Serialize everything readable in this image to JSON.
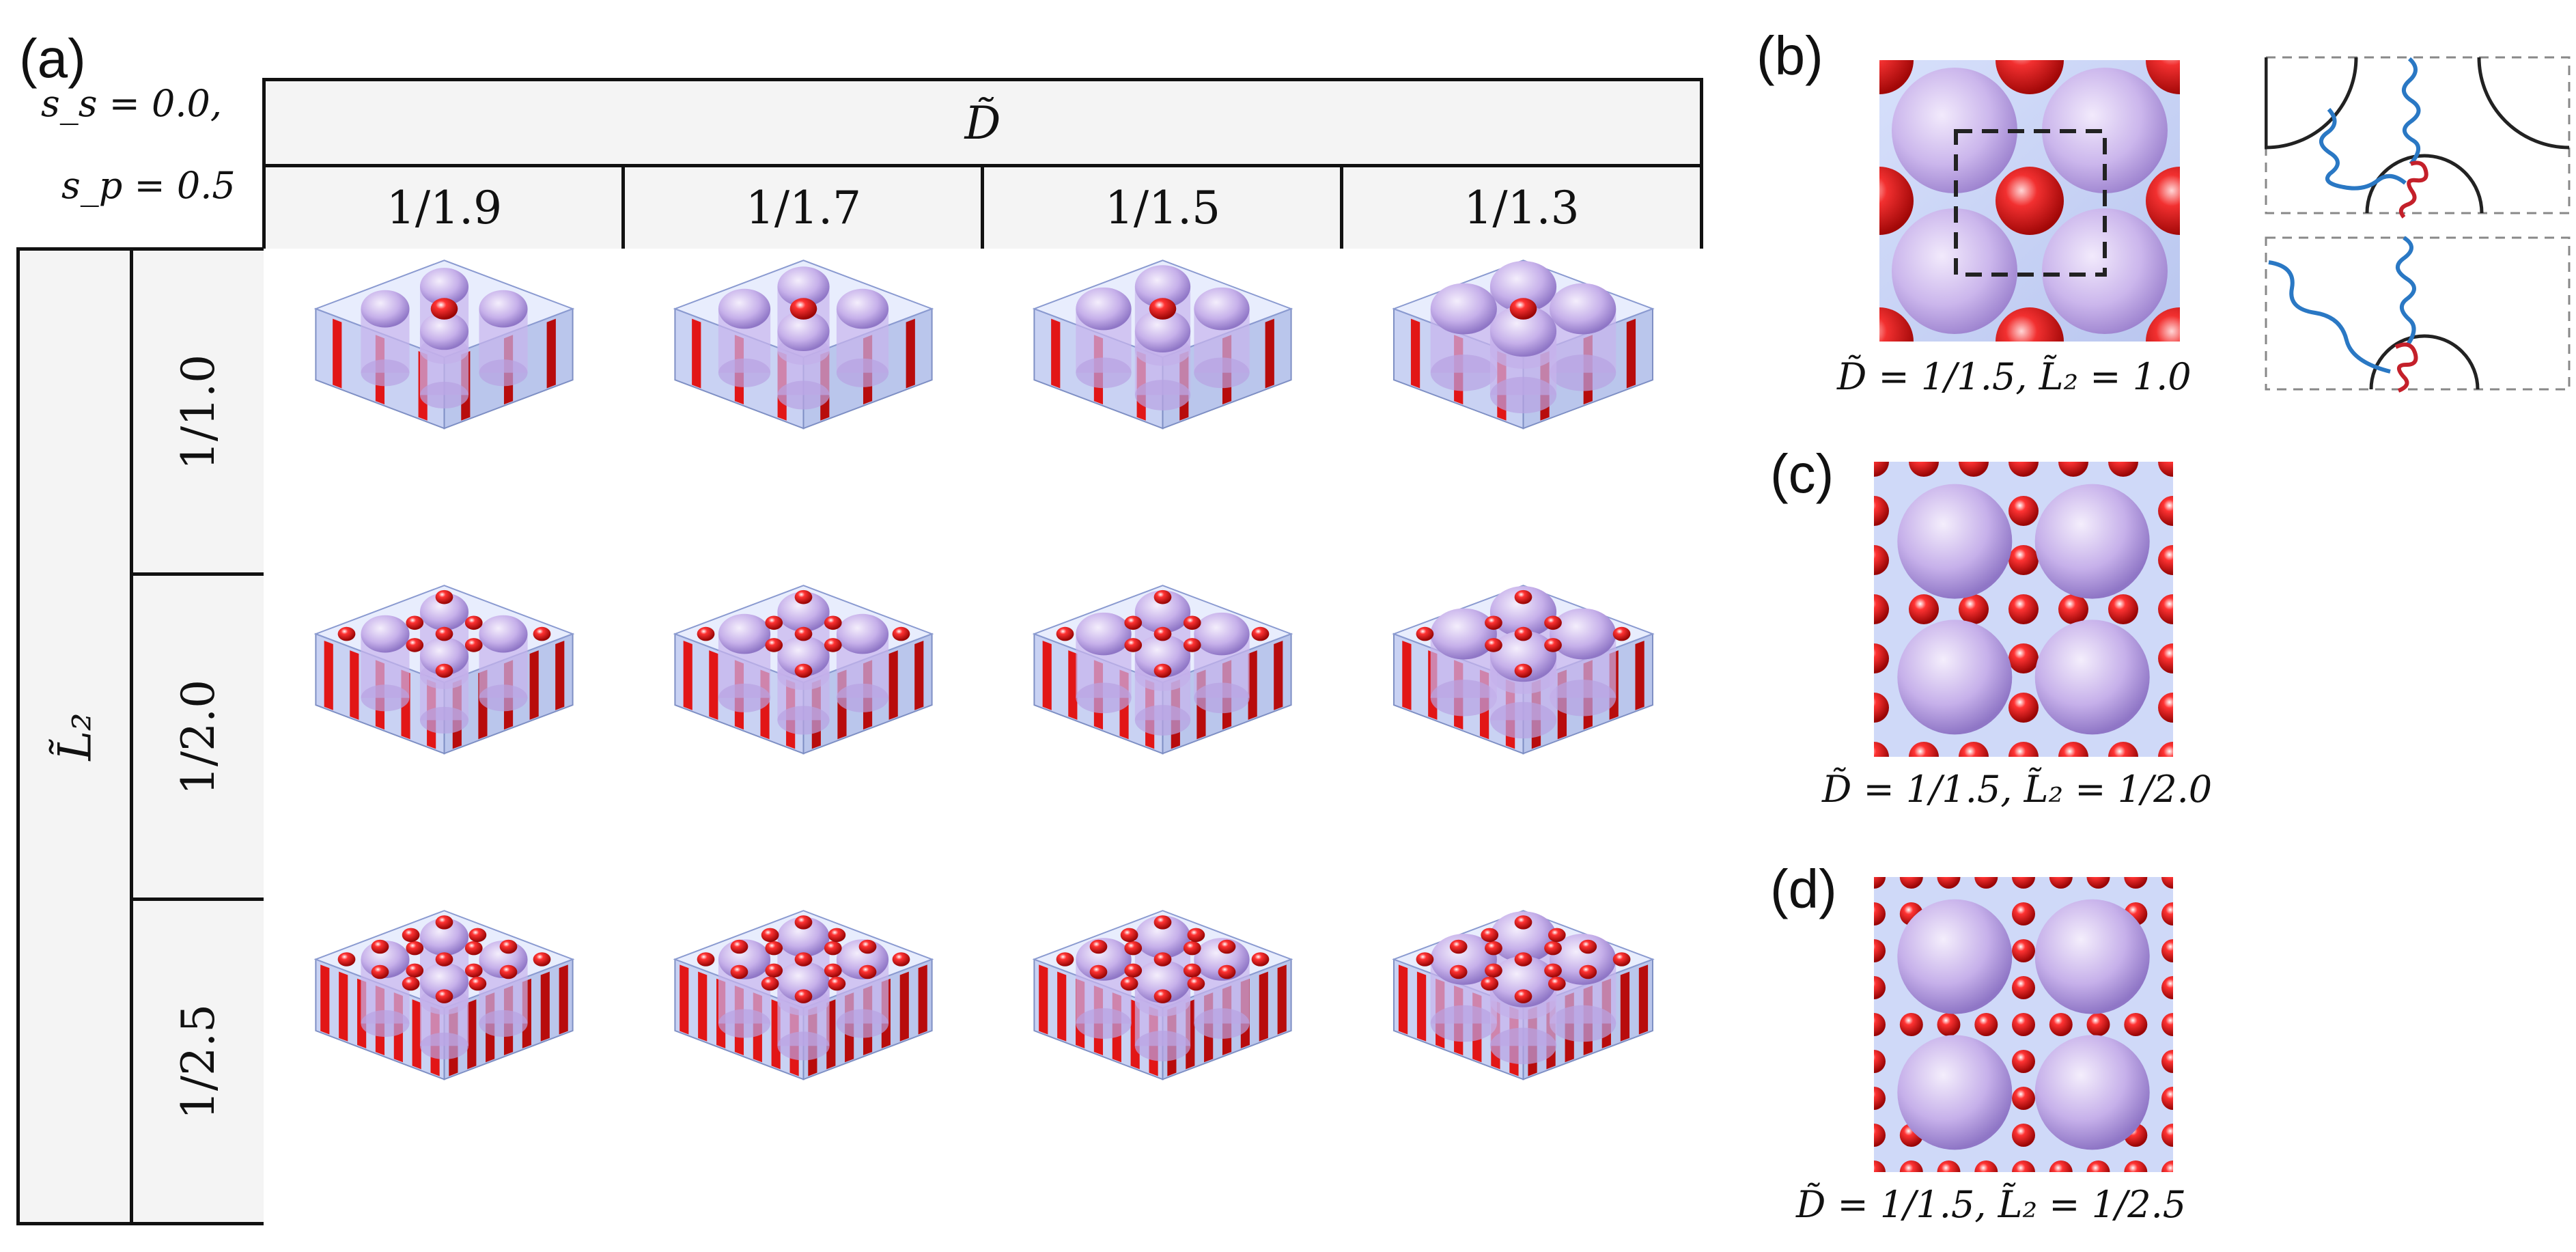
{
  "panel_a": {
    "label": "(a)",
    "param_line1": "s_s = 0.0,",
    "param_line2": "s_p = 0.5",
    "col_header": "D̃",
    "row_header": "L̃₂",
    "columns": [
      "1/1.9",
      "1/1.7",
      "1/1.5",
      "1/1.3"
    ],
    "rows": [
      {
        "label": "1/1.0",
        "morph": "cyl"
      },
      {
        "label": "1/2.0",
        "morph": "mix"
      },
      {
        "label": "1/2.5",
        "morph": "dense"
      }
    ]
  },
  "panel_b": {
    "label": "(b)",
    "caption": "D̃ = 1/1.5,  L̃₂ = 1.0"
  },
  "panel_c": {
    "label": "(c)",
    "caption": "D̃ = 1/1.5,  L̃₂ = 1/2.0"
  },
  "panel_d": {
    "label": "(d)",
    "caption": "D̃ = 1/1.5,  L̃₂ = 1/2.5"
  },
  "colors": {
    "matrix": "#c8d4f4",
    "big_sphere": "#c9b3ea",
    "red_domain": "#e01818",
    "chain_blue": "#2a78c4",
    "chain_red": "#c4202a"
  }
}
